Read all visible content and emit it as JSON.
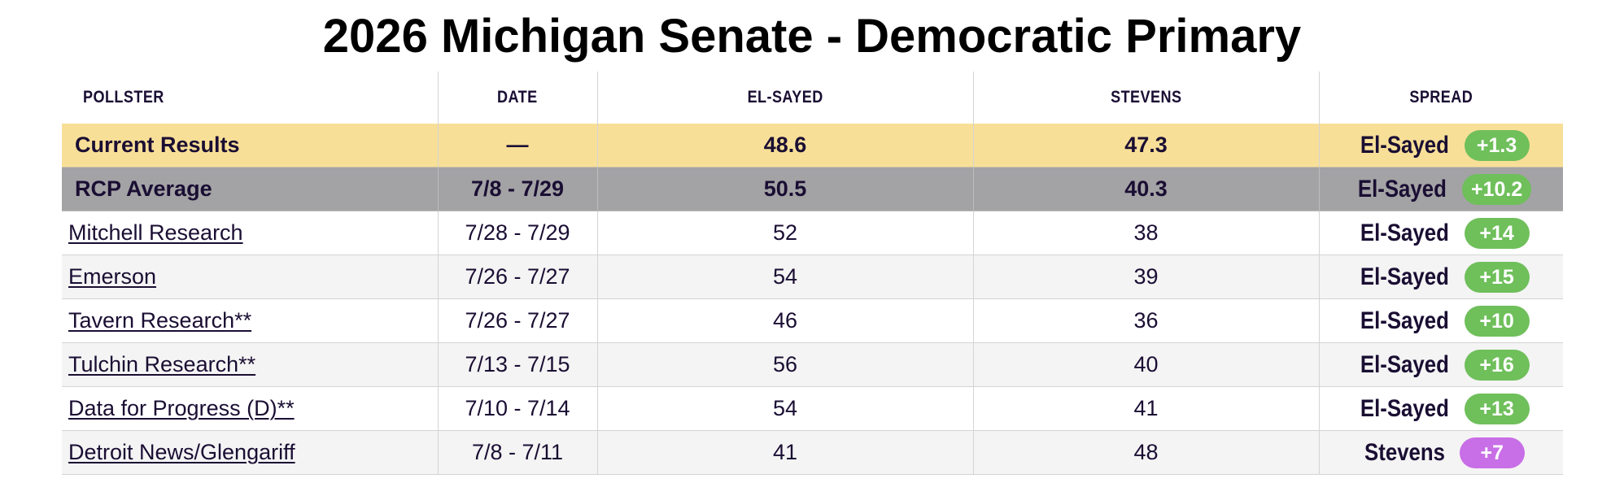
{
  "title": "2026 Michigan Senate - Democratic Primary",
  "columns": {
    "pollster": "POLLSTER",
    "date": "DATE",
    "candidate1": "EL-SAYED",
    "candidate2": "STEVENS",
    "spread": "SPREAD"
  },
  "colors": {
    "el_sayed_badge": "#6fbf5b",
    "stevens_badge": "#c86ee6",
    "current_row_bg": "#f8df98",
    "rcp_row_bg": "#a3a2a5",
    "text": "#1a0e33"
  },
  "summary_rows": [
    {
      "pollster": "Current Results",
      "date": "—",
      "el_sayed": "48.6",
      "stevens": "47.3",
      "spread_leader": "El-Sayed",
      "spread_value": "+1.3"
    },
    {
      "pollster": "RCP Average",
      "date": "7/8 - 7/29",
      "el_sayed": "50.5",
      "stevens": "40.3",
      "spread_leader": "El-Sayed",
      "spread_value": "+10.2"
    }
  ],
  "polls": [
    {
      "pollster": "Mitchell Research",
      "date": "7/28 - 7/29",
      "el_sayed": "52",
      "stevens": "38",
      "spread_leader": "El-Sayed",
      "spread_value": "+14"
    },
    {
      "pollster": "Emerson",
      "date": "7/26 - 7/27",
      "el_sayed": "54",
      "stevens": "39",
      "spread_leader": "El-Sayed",
      "spread_value": "+15"
    },
    {
      "pollster": "Tavern Research**",
      "date": "7/26 - 7/27",
      "el_sayed": "46",
      "stevens": "36",
      "spread_leader": "El-Sayed",
      "spread_value": "+10"
    },
    {
      "pollster": "Tulchin Research**",
      "date": "7/13 - 7/15",
      "el_sayed": "56",
      "stevens": "40",
      "spread_leader": "El-Sayed",
      "spread_value": "+16"
    },
    {
      "pollster": "Data for Progress (D)**",
      "date": "7/10 - 7/14",
      "el_sayed": "54",
      "stevens": "41",
      "spread_leader": "El-Sayed",
      "spread_value": "+13"
    },
    {
      "pollster": "Detroit News/Glengariff",
      "date": "7/8 - 7/11",
      "el_sayed": "41",
      "stevens": "48",
      "spread_leader": "Stevens",
      "spread_value": "+7"
    }
  ]
}
